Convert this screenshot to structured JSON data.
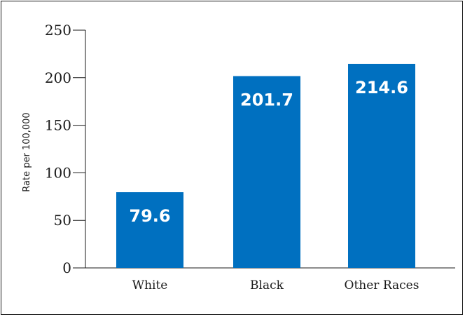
{
  "chart_data": {
    "type": "bar",
    "title": "",
    "xlabel": "",
    "ylabel": "Rate per 100,000",
    "categories": [
      "White",
      "Black",
      "Other Races"
    ],
    "values": [
      79.6,
      201.7,
      214.6
    ],
    "data_labels": [
      "79.6",
      "201.7",
      "214.6"
    ],
    "ylim": [
      0,
      250
    ],
    "yticks": [
      0,
      50,
      100,
      150,
      200,
      250
    ],
    "ytick_labels": [
      "0",
      "50",
      "100",
      "150",
      "200",
      "250"
    ],
    "grid": false,
    "legend": "none",
    "bar_color": "#0070c0"
  }
}
